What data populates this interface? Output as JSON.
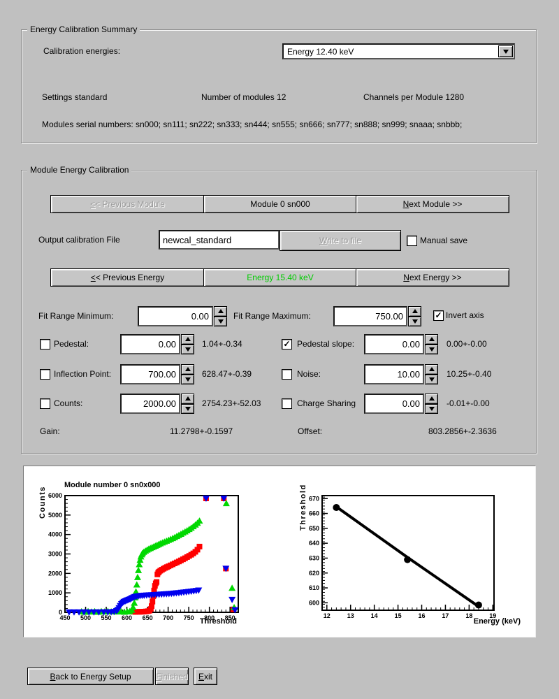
{
  "colors": {
    "background": "#c0c0c0",
    "energy_button_text": "#00cc00",
    "series_red": "#ff0000",
    "series_green": "#00d800",
    "series_blue": "#0000ee",
    "fit_line_black": "#000000"
  },
  "summary": {
    "title": "Energy Calibration Summary",
    "calibration_energies_label": "Calibration energies:",
    "energy_dropdown_value": "Energy 12.40 keV",
    "settings": "Settings standard",
    "num_modules": "Number of modules 12",
    "channels": "Channels per Module 1280",
    "serials": "Modules serial numbers: sn000; sn111; sn222; sn333; sn444; sn555; sn666; sn777; sn888; sn999; snaaa; snbbb;"
  },
  "module_cal": {
    "title": "Module Energy Calibration",
    "prev_module": {
      "pre": "",
      "key": "<",
      "post": "< Previous Module",
      "disabled": true
    },
    "current_module": {
      "pre": "Module 0 sn000",
      "key": "",
      "post": ""
    },
    "next_module": {
      "pre": "",
      "key": "N",
      "post": "ext Module >>",
      "disabled": false
    },
    "output_file_label": "Output calibration File",
    "output_file_value": "newcal_standard",
    "write_button": {
      "pre": "",
      "key": "W",
      "post": "rite to file",
      "disabled": true
    },
    "manual_save_label": "Manual save",
    "manual_save_check": "",
    "prev_energy": {
      "pre": "",
      "key": "<",
      "post": "< Previous Energy",
      "disabled": false
    },
    "current_energy": {
      "pre": "Energy 15.40 keV",
      "key": "",
      "post": ""
    },
    "next_energy": {
      "pre": "",
      "key": "N",
      "post": "ext Energy >>",
      "disabled": false
    },
    "fit_range": {
      "min_label": "Fit Range Minimum:",
      "min_value": "0.00",
      "max_label": "Fit Range Maximum:",
      "max_value": "750.00",
      "invert_label": "Invert axis",
      "invert_check": "✓"
    },
    "params": [
      {
        "label": "Pedestal:",
        "check": "",
        "value": "0.00",
        "fit": "1.04+-0.34"
      },
      {
        "label": "Pedestal slope:",
        "check": "✓",
        "value": "0.00",
        "fit": "0.00+-0.00"
      },
      {
        "label": "Inflection Point:",
        "check": "",
        "value": "700.00",
        "fit": "628.47+-0.39"
      },
      {
        "label": "Noise:",
        "check": "",
        "value": "10.00",
        "fit": "10.25+-0.40"
      },
      {
        "label": "Counts:",
        "check": "",
        "value": "2000.00",
        "fit": "2754.23+-52.03"
      },
      {
        "label": "Charge Sharing",
        "check": "",
        "value": "0.00",
        "fit": "-0.01+-0.00"
      }
    ],
    "gain_label": "Gain:",
    "gain_value": "11.2798+-0.1597",
    "offset_label": "Offset:",
    "offset_value": "803.2856+-2.3636"
  },
  "footer": {
    "back": {
      "pre": "",
      "key": "B",
      "post": "ack to Energy Setup",
      "disabled": false
    },
    "finished": {
      "pre": "",
      "key": "F",
      "post": "inished",
      "disabled": true
    },
    "exit": {
      "pre": "",
      "key": "E",
      "post": "xit",
      "disabled": false
    }
  },
  "chart_data": [
    {
      "type": "scatter",
      "title": "Module number 0 sn0x000",
      "xlabel": "Threshold",
      "ylabel": "Counts",
      "xlim": [
        450,
        870
      ],
      "ylim": [
        0,
        6000
      ],
      "xticks": [
        450,
        500,
        550,
        600,
        650,
        700,
        750,
        800,
        850
      ],
      "yticks": [
        0,
        1000,
        2000,
        3000,
        4000,
        5000,
        6000
      ],
      "x_minor_step": 10,
      "y_minor_step": 200,
      "legend": "none",
      "series": [
        {
          "name": "threshold scan red",
          "marker": "square",
          "color": "#ff0000",
          "points": [
            [
              616,
              30
            ],
            [
              621,
              20
            ],
            [
              626,
              30
            ],
            [
              631,
              25
            ],
            [
              636,
              30
            ],
            [
              641,
              35
            ],
            [
              646,
              45
            ],
            [
              651,
              60
            ],
            [
              655,
              85
            ],
            [
              658,
              170
            ],
            [
              660,
              320
            ],
            [
              662,
              550
            ],
            [
              664,
              830
            ],
            [
              666,
              1120
            ],
            [
              668,
              1360
            ],
            [
              670,
              1490
            ],
            [
              672,
              1560
            ],
            [
              674,
              1950
            ],
            [
              676,
              2040
            ],
            [
              678,
              2090
            ],
            [
              681,
              2140
            ],
            [
              685,
              2190
            ],
            [
              689,
              2240
            ],
            [
              693,
              2285
            ],
            [
              697,
              2325
            ],
            [
              701,
              2365
            ],
            [
              706,
              2415
            ],
            [
              711,
              2465
            ],
            [
              716,
              2515
            ],
            [
              721,
              2565
            ],
            [
              726,
              2615
            ],
            [
              731,
              2670
            ],
            [
              736,
              2725
            ],
            [
              741,
              2780
            ],
            [
              746,
              2840
            ],
            [
              751,
              2900
            ],
            [
              756,
              2960
            ],
            [
              761,
              3030
            ],
            [
              766,
              3110
            ],
            [
              771,
              3220
            ],
            [
              776,
              3380
            ],
            [
              792,
              6000
            ],
            [
              835,
              6000
            ],
            [
              840,
              2250
            ],
            [
              858,
              150
            ]
          ]
        },
        {
          "name": "threshold scan green",
          "marker": "triangle-up",
          "color": "#00d800",
          "points": [
            [
              490,
              40
            ],
            [
              498,
              20
            ],
            [
              506,
              50
            ],
            [
              514,
              25
            ],
            [
              522,
              45
            ],
            [
              530,
              20
            ],
            [
              538,
              50
            ],
            [
              546,
              30
            ],
            [
              554,
              55
            ],
            [
              562,
              35
            ],
            [
              570,
              60
            ],
            [
              578,
              30
            ],
            [
              586,
              45
            ],
            [
              594,
              20
            ],
            [
              601,
              35
            ],
            [
              607,
              50
            ],
            [
              612,
              120
            ],
            [
              615,
              260
            ],
            [
              618,
              480
            ],
            [
              620,
              760
            ],
            [
              622,
              1060
            ],
            [
              624,
              1420
            ],
            [
              626,
              1800
            ],
            [
              628,
              2160
            ],
            [
              630,
              2460
            ],
            [
              632,
              2690
            ],
            [
              634,
              2860
            ],
            [
              636,
              2970
            ],
            [
              638,
              3040
            ],
            [
              641,
              3100
            ],
            [
              645,
              3160
            ],
            [
              649,
              3210
            ],
            [
              653,
              3255
            ],
            [
              657,
              3295
            ],
            [
              661,
              3335
            ],
            [
              665,
              3375
            ],
            [
              669,
              3415
            ],
            [
              673,
              3455
            ],
            [
              677,
              3495
            ],
            [
              681,
              3535
            ],
            [
              686,
              3580
            ],
            [
              691,
              3625
            ],
            [
              696,
              3670
            ],
            [
              701,
              3715
            ],
            [
              706,
              3760
            ],
            [
              711,
              3805
            ],
            [
              716,
              3855
            ],
            [
              721,
              3910
            ],
            [
              726,
              3965
            ],
            [
              731,
              4025
            ],
            [
              736,
              4085
            ],
            [
              741,
              4145
            ],
            [
              746,
              4205
            ],
            [
              751,
              4270
            ],
            [
              756,
              4340
            ],
            [
              761,
              4415
            ],
            [
              766,
              4500
            ],
            [
              771,
              4590
            ],
            [
              776,
              4700
            ],
            [
              841,
              5600
            ],
            [
              855,
              1250
            ],
            [
              860,
              250
            ]
          ]
        },
        {
          "name": "threshold scan blue",
          "marker": "triangle-down",
          "color": "#0000ee",
          "points": [
            [
              460,
              10
            ],
            [
              472,
              10
            ],
            [
              484,
              10
            ],
            [
              496,
              10
            ],
            [
              508,
              10
            ],
            [
              520,
              10
            ],
            [
              532,
              10
            ],
            [
              544,
              12
            ],
            [
              554,
              15
            ],
            [
              562,
              20
            ],
            [
              569,
              30
            ],
            [
              575,
              70
            ],
            [
              578,
              135
            ],
            [
              581,
              225
            ],
            [
              584,
              335
            ],
            [
              587,
              430
            ],
            [
              590,
              500
            ],
            [
              593,
              545
            ],
            [
              596,
              575
            ],
            [
              599,
              602
            ],
            [
              602,
              627
            ],
            [
              605,
              652
            ],
            [
              608,
              680
            ],
            [
              611,
              712
            ],
            [
              614,
              745
            ],
            [
              617,
              776
            ],
            [
              620,
              800
            ],
            [
              624,
              820
            ],
            [
              628,
              836
            ],
            [
              632,
              848
            ],
            [
              637,
              858
            ],
            [
              642,
              866
            ],
            [
              648,
              875
            ],
            [
              654,
              883
            ],
            [
              660,
              891
            ],
            [
              666,
              899
            ],
            [
              672,
              907
            ],
            [
              678,
              915
            ],
            [
              684,
              923
            ],
            [
              690,
              932
            ],
            [
              696,
              941
            ],
            [
              702,
              951
            ],
            [
              708,
              962
            ],
            [
              714,
              974
            ],
            [
              720,
              986
            ],
            [
              726,
              999
            ],
            [
              732,
              1013
            ],
            [
              738,
              1027
            ],
            [
              744,
              1042
            ],
            [
              750,
              1058
            ],
            [
              756,
              1074
            ],
            [
              762,
              1092
            ],
            [
              768,
              1110
            ],
            [
              774,
              1130
            ],
            [
              792,
              6000
            ],
            [
              835,
              6000
            ],
            [
              840,
              2250
            ],
            [
              855,
              650
            ],
            [
              862,
              120
            ]
          ]
        }
      ]
    },
    {
      "type": "line",
      "title": "",
      "xlabel": "Energy (keV)",
      "ylabel": "Threshold",
      "xlim": [
        11.8,
        19.05
      ],
      "ylim": [
        595,
        672
      ],
      "xticks": [
        12,
        13,
        14,
        15,
        16,
        17,
        18,
        19
      ],
      "yticks": [
        600,
        610,
        620,
        630,
        640,
        650,
        660,
        670
      ],
      "x_minor_step": 0.2,
      "y_minor_step": 2,
      "color": "#000000",
      "line": [
        [
          12.4,
          664.5
        ],
        [
          15.4,
          630.5
        ],
        [
          18.4,
          597.5
        ]
      ],
      "points": [
        [
          12.4,
          664
        ],
        [
          15.4,
          629
        ],
        [
          18.4,
          598.5
        ]
      ]
    }
  ]
}
